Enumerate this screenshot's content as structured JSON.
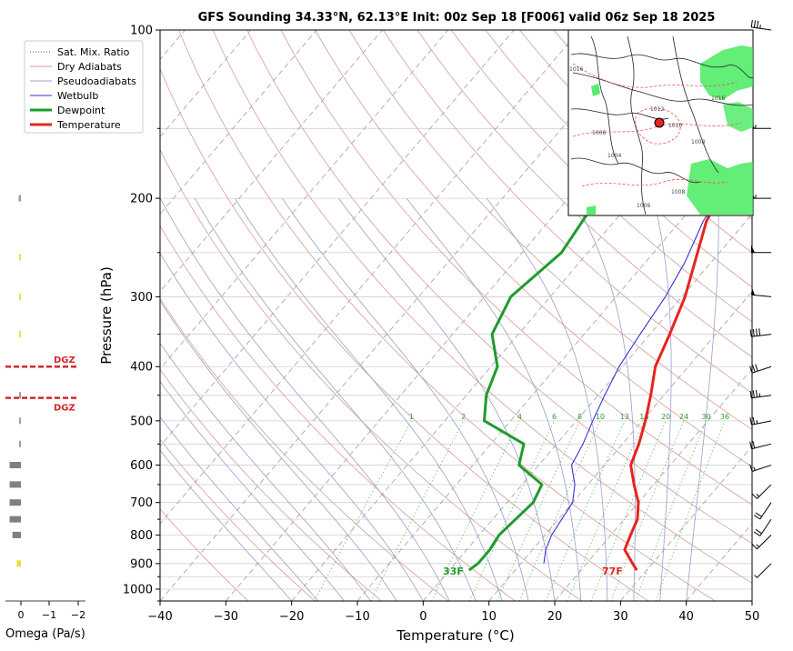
{
  "chart_data": {
    "type": "skew-t",
    "title": "GFS Sounding 34.33°N, 62.13°E Init: 00z Sep 18 [F006] valid 06z Sep 18 2025",
    "xlabel": "Temperature (°C)",
    "ylabel": "Pressure (hPa)",
    "xlim": [
      -40,
      50
    ],
    "ylim": [
      1050,
      100
    ],
    "x_ticks": [
      -40,
      -30,
      -20,
      -10,
      0,
      10,
      20,
      30,
      40,
      50
    ],
    "y_ticks": [
      100,
      200,
      300,
      400,
      500,
      600,
      700,
      800,
      900,
      1000
    ],
    "grid": true,
    "legend_position": "top-left",
    "legend": [
      "Sat. Mix. Ratio",
      "Dry Adiabats",
      "Pseudoadiabats",
      "Wetbulb",
      "Dewpoint",
      "Temperature"
    ],
    "colors": {
      "temperature": "#e8231c",
      "dewpoint": "#1e9c2c",
      "wetbulb": "#3b2fd6",
      "dry_adiabat": "#d99a9a",
      "pseudoadiabat": "#9c9ccf",
      "mixing_ratio": "#2ca02c",
      "dgz": "#d62728"
    },
    "series": [
      {
        "name": "Temperature",
        "points": [
          [
            -10.5,
            100
          ],
          [
            -10.8,
            120
          ],
          [
            -11.0,
            150
          ],
          [
            -8.5,
            180
          ],
          [
            -6.0,
            220
          ],
          [
            -2.5,
            260
          ],
          [
            0.5,
            300
          ],
          [
            3.0,
            350
          ],
          [
            5.0,
            400
          ],
          [
            8.0,
            450
          ],
          [
            10.5,
            500
          ],
          [
            12.5,
            550
          ],
          [
            14.0,
            600
          ],
          [
            17.0,
            650
          ],
          [
            20.0,
            700
          ],
          [
            22.0,
            750
          ],
          [
            23.0,
            800
          ],
          [
            24.0,
            850
          ],
          [
            27.0,
            900
          ],
          [
            28.5,
            925
          ]
        ]
      },
      {
        "name": "Dewpoint",
        "points": [
          [
            -20.0,
            100
          ],
          [
            -23.0,
            120
          ],
          [
            -26.0,
            150
          ],
          [
            -25.5,
            200
          ],
          [
            -24.0,
            250
          ],
          [
            -26.0,
            300
          ],
          [
            -24.0,
            350
          ],
          [
            -19.0,
            400
          ],
          [
            -17.0,
            450
          ],
          [
            -14.0,
            500
          ],
          [
            -5.0,
            550
          ],
          [
            -3.0,
            600
          ],
          [
            3.0,
            650
          ],
          [
            4.0,
            700
          ],
          [
            3.5,
            750
          ],
          [
            3.0,
            800
          ],
          [
            3.5,
            850
          ],
          [
            3.5,
            900
          ],
          [
            3.0,
            925
          ]
        ]
      },
      {
        "name": "Wetbulb",
        "points": [
          [
            -11.0,
            150
          ],
          [
            -8.5,
            180
          ],
          [
            -6.5,
            220
          ],
          [
            -4.0,
            260
          ],
          [
            -2.5,
            300
          ],
          [
            -1.5,
            350
          ],
          [
            -0.5,
            400
          ],
          [
            1.0,
            450
          ],
          [
            2.5,
            500
          ],
          [
            4.0,
            550
          ],
          [
            5.0,
            600
          ],
          [
            8.0,
            650
          ],
          [
            10.0,
            700
          ],
          [
            10.5,
            750
          ],
          [
            11.0,
            800
          ],
          [
            12.0,
            850
          ],
          [
            13.5,
            900
          ]
        ]
      }
    ],
    "surface_labels": {
      "temperature": "77F",
      "dewpoint": "33F"
    },
    "mixing_ratio_labels": [
      "1",
      "2",
      "4",
      "6",
      "8",
      "10",
      "13",
      "16",
      "20",
      "24",
      "30",
      "36"
    ],
    "dgz_label": "DGZ",
    "dgz_pressures": [
      400,
      455
    ],
    "omega": {
      "label": "Omega (Pa/s)",
      "ticks": [
        "0",
        "−1",
        "−2"
      ],
      "bars": [
        [
          200,
          0.08
        ],
        [
          255,
          0.06
        ],
        [
          300,
          0.06
        ],
        [
          350,
          0.06
        ],
        [
          450,
          0.06
        ],
        [
          500,
          0.06
        ],
        [
          550,
          0.06
        ],
        [
          600,
          0.4
        ],
        [
          650,
          0.4
        ],
        [
          700,
          0.4
        ],
        [
          750,
          0.4
        ],
        [
          800,
          0.3
        ],
        [
          900,
          0.15
        ]
      ],
      "bar_colors": [
        "#999999",
        "#e8e03a",
        "#e8e03a",
        "#e8e03a",
        "#999999",
        "#999999",
        "#999999",
        "#808080",
        "#808080",
        "#808080",
        "#808080",
        "#808080",
        "#e8e03a"
      ]
    },
    "wind_barbs": [
      {
        "p": 100,
        "u": 35,
        "v": 5
      },
      {
        "p": 150,
        "u": 55,
        "v": 0
      },
      {
        "p": 200,
        "u": 55,
        "v": 0
      },
      {
        "p": 250,
        "u": 50,
        "v": 0
      },
      {
        "p": 300,
        "u": 50,
        "v": 5
      },
      {
        "p": 350,
        "u": 40,
        "v": -5
      },
      {
        "p": 400,
        "u": 30,
        "v": -10
      },
      {
        "p": 450,
        "u": 35,
        "v": -5
      },
      {
        "p": 500,
        "u": 25,
        "v": -5
      },
      {
        "p": 550,
        "u": 20,
        "v": -5
      },
      {
        "p": 600,
        "u": 15,
        "v": -5
      },
      {
        "p": 650,
        "u": 10,
        "v": -10
      },
      {
        "p": 700,
        "u": 10,
        "v": -15
      },
      {
        "p": 750,
        "u": 10,
        "v": -15
      },
      {
        "p": 800,
        "u": 10,
        "v": -10
      },
      {
        "p": 900,
        "u": 5,
        "v": -5
      }
    ]
  },
  "inset_map": {
    "content": "surface map",
    "pressure_labels": [
      "1016",
      "1012",
      "1010",
      "1008",
      "1006",
      "1004",
      "1008",
      "1006",
      "1016"
    ]
  }
}
